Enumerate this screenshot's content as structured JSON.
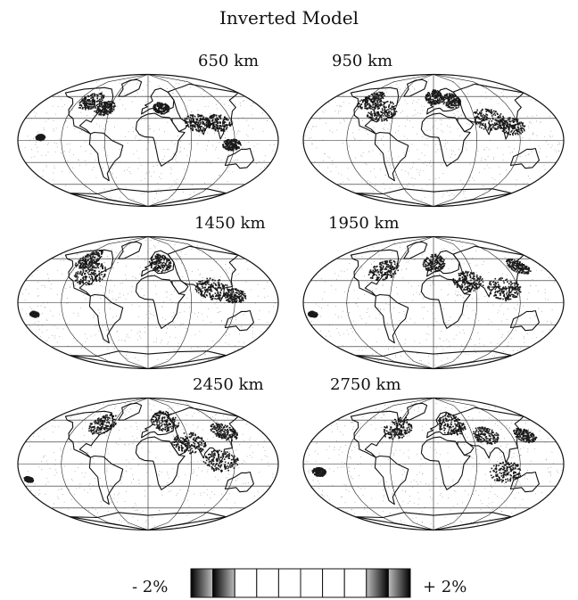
{
  "figure": {
    "title": "Inverted Model",
    "panels": [
      {
        "depth_label": "650 km"
      },
      {
        "depth_label": "950 km"
      },
      {
        "depth_label": "1450 km"
      },
      {
        "depth_label": "1950 km"
      },
      {
        "depth_label": "2450 km"
      },
      {
        "depth_label": "2750 km"
      }
    ],
    "colorbar": {
      "min_label": "- 2%",
      "max_label": "+ 2%",
      "segments": 10
    },
    "colors": {
      "anomaly": "#1a1a1a",
      "land_outline": "#111111",
      "graticule": "#222222",
      "background": "#ffffff"
    }
  }
}
